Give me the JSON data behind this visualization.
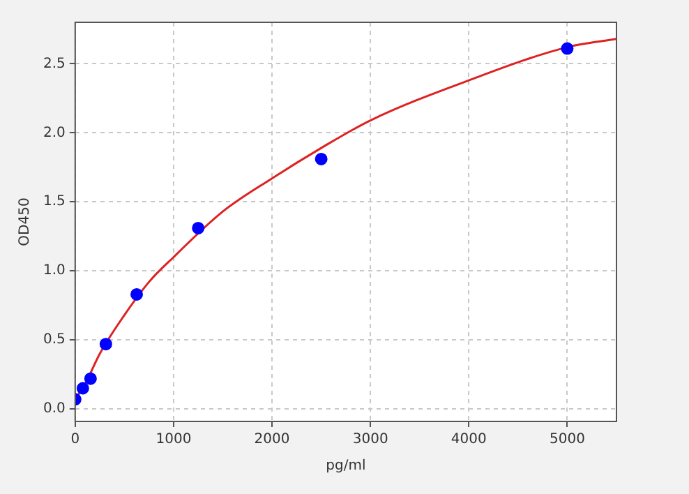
{
  "chart_data": {
    "type": "scatter",
    "xlabel": "pg/ml",
    "ylabel": "OD450",
    "xlim": [
      0,
      5500
    ],
    "xticks": [
      0,
      1000,
      2000,
      3000,
      4000,
      5000
    ],
    "ylim": [
      -0.09,
      2.8
    ],
    "yticks": [
      {
        "value": 0,
        "label": "0.0"
      },
      0.5,
      {
        "value": 1,
        "label": "1.0"
      },
      1.5,
      {
        "value": 2,
        "label": "2.0"
      },
      2.5
    ],
    "grid": true,
    "legend": false,
    "marker": "circle",
    "series": [
      {
        "color": "#0000ff",
        "x": [
          0,
          78,
          156,
          312,
          625,
          1250,
          2500,
          5000
        ],
        "values": [
          0.07,
          0.15,
          0.22,
          0.47,
          0.83,
          1.31,
          1.81,
          2.61
        ]
      },
      {
        "type": "line",
        "color": "#dd2222",
        "line_style": "solid",
        "marker": "none",
        "x": [
          0,
          100,
          250,
          500,
          750,
          1000,
          1500,
          2000,
          2500,
          3000,
          4000,
          5000,
          5500
        ],
        "values": [
          0.07,
          0.18,
          0.4,
          0.68,
          0.92,
          1.1,
          1.43,
          1.67,
          1.89,
          2.09,
          2.38,
          2.62,
          2.68
        ]
      }
    ]
  }
}
